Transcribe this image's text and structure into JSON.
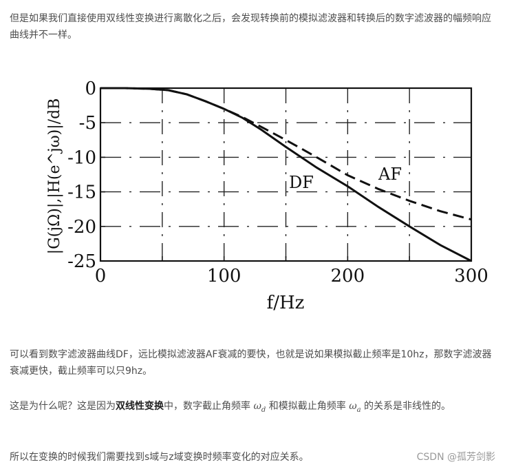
{
  "article": {
    "p1": "但是如果我们直接使用双线性变换进行离散化之后，会发现转换前的模拟滤波器和转换后的数字滤波器的幅频响应曲线并不一样。",
    "p2": "可以看到数字滤波器曲线DF，远比模拟滤波器AF衰减的要快，也就是说如果模拟截止频率是10hz，那数字滤波器衰减更快，截止频率可以只9hz。",
    "p3_prefix": "这是为什么呢？这是因为",
    "p3_bold": "双线性变换",
    "p3_mid1": "中，数字截止角频率 ",
    "p3_omega_d": "ω",
    "p3_sub_d": "d",
    "p3_mid2": " 和模拟截止角频率 ",
    "p3_omega_a": "ω",
    "p3_sub_a": "a",
    "p3_suffix": " 的关系是非线性的。",
    "p4": "所以在变换的时候我们需要找到s域与z域变换时频率变化的对应关系。",
    "watermark": "CSDN @孤芳剑影"
  },
  "chart_data": {
    "type": "line",
    "xlabel": "f/Hz",
    "ylabel": "|G(jΩ)|,|H(e^jω)|/dB",
    "xlim": [
      0,
      300
    ],
    "ylim": [
      -25,
      0
    ],
    "xticks": [
      "0",
      "100",
      "200",
      "300"
    ],
    "yticks": [
      "0",
      "-5",
      "-10",
      "-15",
      "-20",
      "-25"
    ],
    "grid": true,
    "series": [
      {
        "name": "DF",
        "style": "solid",
        "x": [
          0,
          20,
          40,
          55,
          70,
          85,
          100,
          115,
          130,
          150,
          175,
          200,
          225,
          250,
          275,
          300
        ],
        "y": [
          0,
          0,
          -0.1,
          -0.3,
          -0.9,
          -1.9,
          -3,
          -4.3,
          -6,
          -8.5,
          -11.5,
          -14.2,
          -17.2,
          -20,
          -22.7,
          -25
        ]
      },
      {
        "name": "AF",
        "style": "dashed",
        "x": [
          0,
          20,
          40,
          55,
          70,
          85,
          100,
          115,
          130,
          150,
          175,
          200,
          225,
          250,
          275,
          300
        ],
        "y": [
          0,
          0,
          -0.1,
          -0.3,
          -0.9,
          -1.9,
          -3,
          -4.2,
          -5.6,
          -7.5,
          -10,
          -12.6,
          -14.6,
          -16.3,
          -17.8,
          -19
        ]
      }
    ]
  }
}
